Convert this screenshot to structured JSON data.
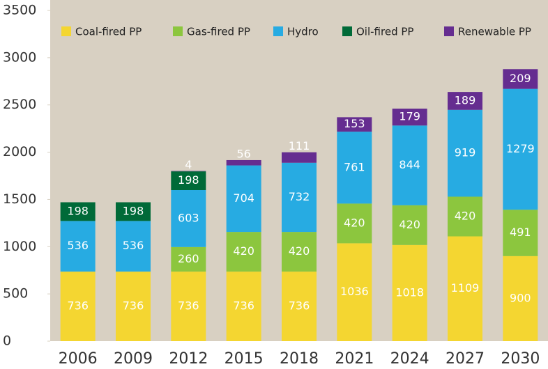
{
  "chart_data": {
    "type": "stacked_bar",
    "categories": [
      "2006",
      "2009",
      "2012",
      "2015",
      "2018",
      "2021",
      "2024",
      "2027",
      "2030"
    ],
    "series": [
      {
        "name": "Coal-fired PP",
        "color": "#f4d631",
        "values": [
          736,
          736,
          736,
          736,
          736,
          1036,
          1018,
          1109,
          900
        ]
      },
      {
        "name": "Gas-fired PP",
        "color": "#8cc63e",
        "values": [
          0,
          0,
          260,
          420,
          420,
          420,
          420,
          420,
          491
        ]
      },
      {
        "name": "Hydro",
        "color": "#27abe2",
        "values": [
          536,
          536,
          603,
          704,
          732,
          761,
          844,
          919,
          1279
        ]
      },
      {
        "name": "Oil-fired PP",
        "color": "#006a38",
        "values": [
          198,
          198,
          198,
          null,
          null,
          null,
          null,
          null,
          null
        ]
      },
      {
        "name": "Renewable PP",
        "color": "#652d90",
        "values": [
          null,
          null,
          4,
          56,
          111,
          153,
          179,
          189,
          209
        ]
      }
    ],
    "ylim": [
      0,
      3500
    ],
    "yticks": [
      0,
      500,
      1000,
      1500,
      2000,
      2500,
      3000,
      3500
    ],
    "legend": "top",
    "background": "#d8d0c2"
  }
}
